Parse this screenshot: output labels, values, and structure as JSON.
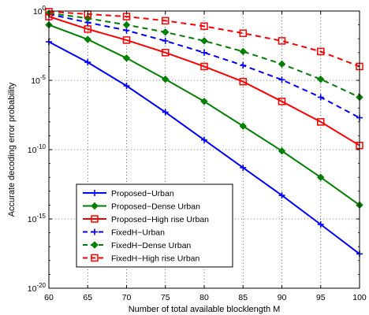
{
  "chart_data": {
    "type": "line",
    "xlabel": "Number of total available blocklength M",
    "ylabel": "Accurate decoding error probability",
    "y_scale": "log",
    "xlim": [
      60,
      100
    ],
    "ylim": [
      1e-20,
      1
    ],
    "x_ticks": [
      60,
      65,
      70,
      75,
      80,
      85,
      90,
      95,
      100
    ],
    "x_tick_labels": [
      "60",
      "65",
      "70",
      "75",
      "80",
      "85",
      "90",
      "95",
      "100"
    ],
    "y_ticks": [
      0,
      -5,
      -10,
      -15,
      -20
    ],
    "y_tick_labels": [
      {
        "base": "10",
        "exp": "0"
      },
      {
        "base": "10",
        "exp": "-5"
      },
      {
        "base": "10",
        "exp": "-10"
      },
      {
        "base": "10",
        "exp": "-15"
      },
      {
        "base": "10",
        "exp": "-20"
      }
    ],
    "grid": true,
    "legend_position": "bottom-left",
    "x": [
      60,
      65,
      70,
      75,
      80,
      85,
      90,
      95,
      100
    ],
    "series": [
      {
        "name": "Proposed−Urban",
        "color": "#0000ff",
        "dash": "solid",
        "marker": "plus",
        "values": [
          0.006,
          0.0002,
          4e-06,
          5e-08,
          5e-10,
          5e-12,
          5e-14,
          4e-16,
          3e-18
        ]
      },
      {
        "name": "Proposed−Dense Urban",
        "color": "#008000",
        "dash": "solid",
        "marker": "diamond",
        "values": [
          0.1,
          0.009,
          0.0004,
          1.2e-05,
          3e-07,
          5e-09,
          8e-11,
          1e-12,
          1e-14
        ]
      },
      {
        "name": "Proposed−High rise Urban",
        "color": "#ff0000",
        "dash": "solid",
        "marker": "square",
        "values": [
          0.4,
          0.05,
          0.008,
          0.001,
          0.0001,
          8e-06,
          3e-07,
          1e-08,
          2e-10
        ]
      },
      {
        "name": "FixedH−Urban",
        "color": "#0000ff",
        "dash": "dashed",
        "marker": "plus",
        "values": [
          0.6,
          0.15,
          0.04,
          0.007,
          0.001,
          0.00012,
          1.1e-05,
          6e-07,
          2e-08
        ]
      },
      {
        "name": "FixedH−Dense Urban",
        "color": "#008000",
        "dash": "dashed",
        "marker": "diamond",
        "values": [
          0.7,
          0.3,
          0.1,
          0.03,
          0.007,
          0.0012,
          0.00015,
          1.2e-05,
          6e-07
        ]
      },
      {
        "name": "FixedH−High rise Urban",
        "color": "#ff0000",
        "dash": "dashed",
        "marker": "square",
        "values": [
          0.9,
          0.6,
          0.4,
          0.2,
          0.08,
          0.025,
          0.007,
          0.0012,
          0.0001
        ]
      }
    ]
  }
}
